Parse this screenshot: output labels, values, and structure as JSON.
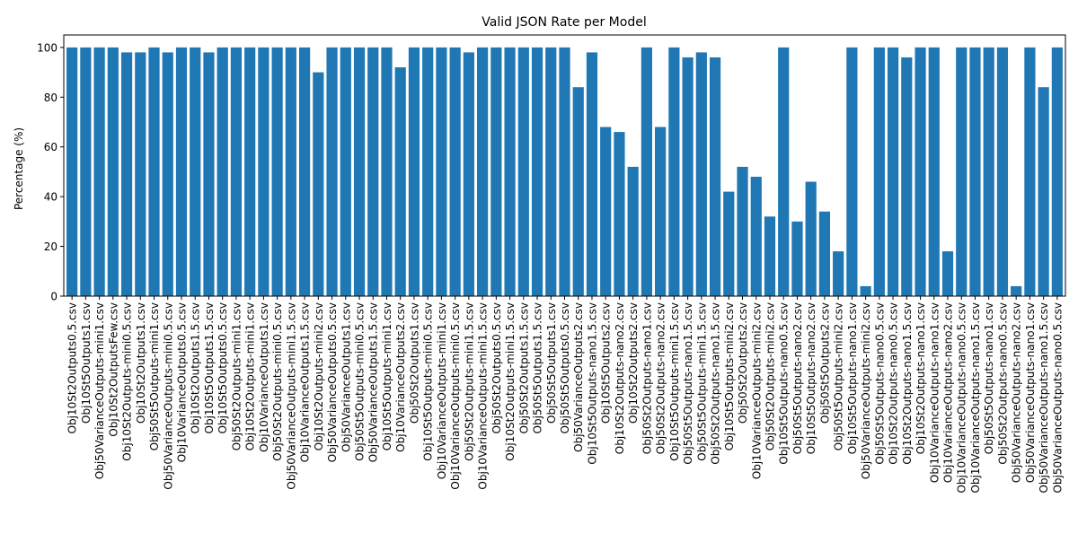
{
  "chart_data": {
    "type": "bar",
    "title": "Valid JSON Rate per Model",
    "xlabel": "",
    "ylabel": "Percentage (%)",
    "ylim": [
      0,
      105
    ],
    "yticks": [
      0,
      20,
      40,
      60,
      80,
      100
    ],
    "grid": false,
    "bar_color": "#1f77b4",
    "categories": [
      "Obj10St2Outputs0.5.csv",
      "Obj10St5Outputs1.csv",
      "Obj50VarianceOutputs-mini1.csv",
      "Obj10St2OutputsFew.csv",
      "Obj10St2Outputs-mini0.5.csv",
      "Obj10St2Outputs1.csv",
      "Obj50St5Outputs-mini1.csv",
      "Obj50VarianceOutputs-mini0.5.csv",
      "Obj10VarianceOutputs0.5.csv",
      "Obj10St2Outputs1.5.csv",
      "Obj10St5Outputs1.5.csv",
      "Obj10St5Outputs0.5.csv",
      "Obj50St2Outputs-mini1.csv",
      "Obj10St2Outputs-mini1.csv",
      "Obj10VarianceOutputs1.csv",
      "Obj50St2Outputs-mini0.5.csv",
      "Obj50VarianceOutputs-mini1.5.csv",
      "Obj10VarianceOutputs1.5.csv",
      "Obj10St2Outputs-mini2.csv",
      "Obj50VarianceOutputs0.5.csv",
      "Obj50VarianceOutputs1.csv",
      "Obj50St5Outputs-mini0.5.csv",
      "Obj50VarianceOutputs1.5.csv",
      "Obj10St5Outputs-mini1.csv",
      "Obj10VarianceOutputs2.csv",
      "Obj50St2Outputs1.csv",
      "Obj10St5Outputs-mini0.5.csv",
      "Obj10VarianceOutputs-mini1.csv",
      "Obj10VarianceOutputs-mini0.5.csv",
      "Obj50St2Outputs-mini1.5.csv",
      "Obj10VarianceOutputs-mini1.5.csv",
      "Obj50St2Outputs0.5.csv",
      "Obj10St2Outputs-mini1.5.csv",
      "Obj50St2Outputs1.5.csv",
      "Obj50St5Outputs1.5.csv",
      "Obj50St5Outputs1.csv",
      "Obj50St5Outputs0.5.csv",
      "Obj50VarianceOutputs2.csv",
      "Obj10St5Outputs-nano1.5.csv",
      "Obj10St5Outputs2.csv",
      "Obj10St2Outputs-nano2.csv",
      "Obj10St2Outputs2.csv",
      "Obj50St2Outputs-nano1.csv",
      "Obj50St2Outputs-nano2.csv",
      "Obj10St5Outputs-mini1.5.csv",
      "Obj50St5Outputs-nano1.5.csv",
      "Obj50St5Outputs-mini1.5.csv",
      "Obj50St2Outputs-nano1.5.csv",
      "Obj10St5Outputs-mini2.csv",
      "Obj50St2Outputs2.csv",
      "Obj10VarianceOutputs-mini2.csv",
      "Obj50St2Outputs-mini2.csv",
      "Obj10St5Outputs-nano0.5.csv",
      "Obj50St5Outputs-nano2.csv",
      "Obj10St5Outputs-nano2.csv",
      "Obj50St5Outputs2.csv",
      "Obj50St5Outputs-mini2.csv",
      "Obj10St5Outputs-nano1.csv",
      "Obj50VarianceOutputs-mini2.csv",
      "Obj50St5Outputs-nano0.5.csv",
      "Obj10St2Outputs-nano0.5.csv",
      "Obj10St2Outputs-nano1.5.csv",
      "Obj10St2Outputs-nano1.csv",
      "Obj10VarianceOutputs-nano1.csv",
      "Obj10VarianceOutputs-nano2.csv",
      "Obj10VarianceOutputs-nano0.5.csv",
      "Obj10VarianceOutputs-nano1.5.csv",
      "Obj50St5Outputs-nano1.csv",
      "Obj50St2Outputs-nano0.5.csv",
      "Obj50VarianceOutputs-nano2.csv",
      "Obj50VarianceOutputs-nano1.csv",
      "Obj50VarianceOutputs-nano1.5.csv",
      "Obj50VarianceOutputs-nano0.5.csv"
    ],
    "values": [
      100,
      100,
      100,
      100,
      98,
      98,
      100,
      98,
      100,
      100,
      98,
      100,
      100,
      100,
      100,
      100,
      100,
      100,
      90,
      100,
      100,
      100,
      100,
      100,
      92,
      100,
      100,
      100,
      100,
      98,
      100,
      100,
      100,
      100,
      100,
      100,
      100,
      84,
      98,
      68,
      66,
      52,
      100,
      68,
      100,
      96,
      98,
      96,
      42,
      52,
      48,
      32,
      100,
      30,
      46,
      34,
      18,
      100,
      4,
      100,
      100,
      96,
      100,
      100,
      18,
      100,
      100,
      100,
      100,
      4,
      100,
      84,
      100
    ]
  }
}
